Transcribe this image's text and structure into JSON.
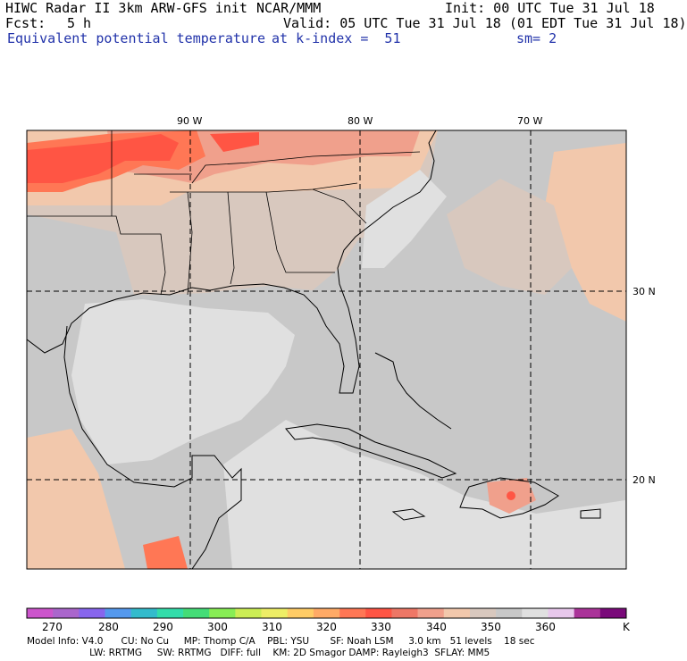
{
  "header": {
    "title": "HIWC Radar II 3km ARW-GFS init",
    "org": "NCAR/MMM",
    "init": "Init: 00 UTC Tue 31 Jul 18",
    "fcst_label": "Fcst:",
    "fcst_value": "5 h",
    "valid": "Valid: 05 UTC Tue 31 Jul 18 (01 EDT Tue 31 Jul 18)",
    "field": "Equivalent potential temperature",
    "level": "at k-index =  51",
    "smoothing": "sm= 2"
  },
  "grid": {
    "lon_labels": [
      "90 W",
      "80 W",
      "70 W"
    ],
    "lat_labels": [
      "30 N",
      "20 N"
    ]
  },
  "colorbar": {
    "unit": "K",
    "tick_labels": [
      "270",
      "280",
      "290",
      "300",
      "310",
      "320",
      "330",
      "340",
      "350",
      "360"
    ],
    "levels_k": [
      265,
      270,
      275,
      280,
      285,
      290,
      295,
      300,
      305,
      310,
      315,
      320,
      325,
      330,
      335,
      340,
      345,
      350,
      355,
      360,
      365,
      370,
      375
    ],
    "colors": [
      "#cc55cc",
      "#aa66cc",
      "#8866ee",
      "#5599ee",
      "#33bbcc",
      "#33ddaa",
      "#44dd77",
      "#88ee55",
      "#ccee55",
      "#eeee66",
      "#ffcc66",
      "#ffaa66",
      "#ff7755",
      "#ff5544",
      "#ee7766",
      "#f0a08c",
      "#f2c8ac",
      "#d8c8be",
      "#c8c8c8",
      "#e0e0e0",
      "#e8c8ec",
      "#aa3399",
      "#7a0a7a"
    ]
  },
  "map_colors": {
    "ocean_low": "#c8c8c8",
    "ocean_mid": "#d8c8be",
    "ocean_warm": "#f2c8ac",
    "clear": "#e0e0e0",
    "hot1": "#ff5544",
    "hot2": "#ff7755",
    "hot3": "#f0a08c"
  },
  "footer": {
    "line1": "Model Info: V4.0      CU: No Cu     MP: Thomp C/A    PBL: YSU       SF: Noah LSM     3.0 km   51 levels    18 sec",
    "line2": "                     LW: RRTMG     SW: RRTMG   DIFF: full    KM: 2D Smagor DAMP: Rayleigh3  SFLAY: MM5"
  }
}
